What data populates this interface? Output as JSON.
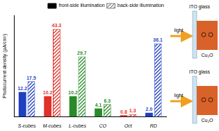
{
  "chart_data": {
    "type": "bar",
    "y_label": "Photocurrent density (μA/cm²)",
    "categories": [
      "S-cubes",
      "M-cubes",
      "L-cubes",
      "CO",
      "Oct",
      "RD"
    ],
    "series": [
      {
        "name": "front-side illumination",
        "color": "#000000",
        "colors": [
          "#1f3fbf",
          "#e0302a",
          "#2a8a2a",
          "#2a8a2a",
          "#e0302a",
          "#1f3fbf"
        ],
        "values": [
          12.2,
          10.2,
          10.2,
          4.1,
          0.8,
          2.0
        ],
        "value_labels": [
          "12.2",
          "10.2",
          "10.2",
          "4.1",
          "0.8",
          "2.0"
        ]
      },
      {
        "name": "back-side illumination",
        "color": "#888888",
        "colors": [
          "#1f3fbf",
          "#e0302a",
          "#2a8a2a",
          "#2a8a2a",
          "#e0302a",
          "#1f3fbf"
        ],
        "values": [
          17.5,
          43.3,
          29.7,
          6.3,
          1.3,
          36.1
        ]
      }
    ],
    "ylim": [
      0,
      50
    ],
    "tick_labels": "x",
    "grid": false,
    "legend": "top right",
    "data_labels": true
  },
  "diagram": {
    "panels": [
      {
        "substrate": "ITO glass",
        "light": "light",
        "material": "Cu₂O"
      },
      {
        "substrate": "ITO glass",
        "light": "light",
        "material": "Cu₂O"
      }
    ]
  }
}
